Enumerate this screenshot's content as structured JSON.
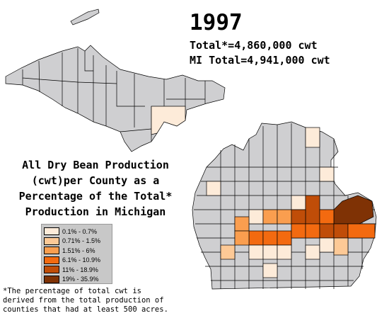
{
  "header": {
    "year": "1997",
    "total": "Total*=4,860,000 cwt",
    "mi_total": "MI Total=4,941,000 cwt"
  },
  "title": {
    "lines": [
      "All Dry Bean Production",
      "(cwt)per County as a",
      "Percentage of the Total*",
      "Production in Michigan"
    ]
  },
  "legend": {
    "items": [
      {
        "label": "0.1% - 0.7%",
        "color": "#fdebd9"
      },
      {
        "label": "0.71% - 1.5%",
        "color": "#fdc996"
      },
      {
        "label": "1.51% - 6%",
        "color": "#fa9e4f"
      },
      {
        "label": "6.1% - 10.9%",
        "color": "#f36a10"
      },
      {
        "label": "11% - 18.9%",
        "color": "#c04d08"
      },
      {
        "label": "19% - 35.9%",
        "color": "#7f3205"
      }
    ]
  },
  "footnote": {
    "lines": [
      "*The percentage of total cwt is",
      "derived from the total production of",
      "counties that had at least 500 acres."
    ]
  },
  "colors": {
    "no_data": "#cfcfd1",
    "outline": "#000000",
    "background": "#ffffff"
  }
}
